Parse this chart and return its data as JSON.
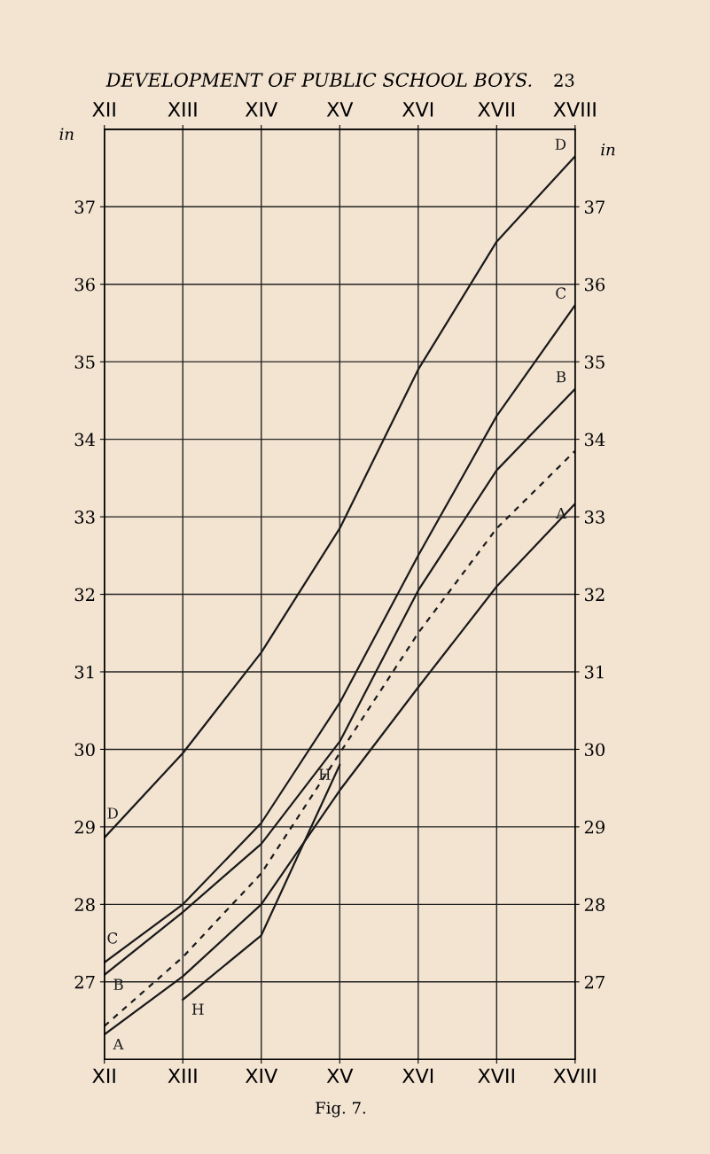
{
  "chart_data": {
    "type": "line",
    "title": "DEVELOPMENT OF PUBLIC SCHOOL BOYS.",
    "annotations": [
      "23",
      "Fig. 7."
    ],
    "ylabel": "in",
    "y2label": "in",
    "categories": [
      "XII",
      "XIII",
      "XIV",
      "XV",
      "XVI",
      "XVII",
      "XVIII"
    ],
    "ylim": [
      26,
      38
    ],
    "yticks": [
      27,
      28,
      29,
      30,
      31,
      32,
      33,
      34,
      35,
      36,
      37
    ],
    "y2lim": [
      26,
      38
    ],
    "y2ticks": [
      27,
      28,
      29,
      30,
      31,
      32,
      33,
      34,
      35,
      36,
      37
    ],
    "grid": true,
    "marker": "none",
    "series": [
      {
        "name": "D",
        "color": "#1a1a1a",
        "values": [
          28.86,
          29.95,
          31.25,
          32.85,
          34.9,
          36.55,
          37.65
        ]
      },
      {
        "name": "C",
        "color": "#1a1a1a",
        "values": [
          27.25,
          28.0,
          29.05,
          30.6,
          32.5,
          34.3,
          35.73
        ]
      },
      {
        "name": "B",
        "color": "#1a1a1a",
        "values": [
          27.09,
          27.9,
          28.78,
          30.1,
          32.05,
          33.6,
          34.65
        ]
      },
      {
        "color": "#1a1a1a",
        "line_style": "dashed",
        "values": [
          26.43,
          27.32,
          28.4,
          29.95,
          31.5,
          32.85,
          33.85
        ]
      },
      {
        "name": "A",
        "color": "#1a1a1a",
        "values": [
          26.32,
          27.07,
          28.0,
          29.47,
          30.8,
          32.1,
          33.17
        ]
      },
      {
        "name": "H",
        "color": "#1a1a1a",
        "values": [
          null,
          26.77,
          27.6,
          29.8,
          null,
          null,
          null
        ]
      }
    ]
  }
}
